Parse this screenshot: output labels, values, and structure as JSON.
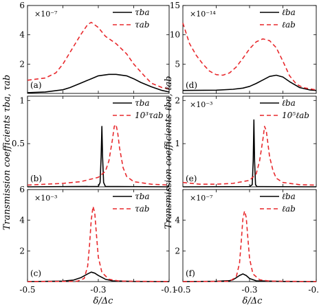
{
  "figure": {
    "ylabel_left": "Transmission coefficients τba, τab",
    "ylabel_right": "Transmission coefficients ℓba, ℓab",
    "xlabel": "δ/Δc",
    "xticks": [
      "-0.5",
      "-0.3",
      "-0.1"
    ]
  },
  "chart_data": [
    {
      "id": "a",
      "type": "line",
      "panel_label": "(a)",
      "scale_label": "×10⁻⁷",
      "ylim": [
        0,
        6
      ],
      "yticks": [
        "2",
        "4",
        "6"
      ],
      "xlim": [
        -0.5,
        -0.1
      ],
      "legend_position": "top-right",
      "series": [
        {
          "name": "τba",
          "style": "solid",
          "color": "#000000",
          "x": [
            -0.5,
            -0.45,
            -0.4,
            -0.38,
            -0.35,
            -0.32,
            -0.3,
            -0.27,
            -0.25,
            -0.22,
            -0.2,
            -0.18,
            -0.15,
            -0.12,
            -0.1
          ],
          "y": [
            0.05,
            0.1,
            0.25,
            0.4,
            0.7,
            1.0,
            1.2,
            1.3,
            1.3,
            1.2,
            1.0,
            0.75,
            0.45,
            0.2,
            0.1
          ]
        },
        {
          "name": "τab",
          "style": "dashed",
          "color": "#e8282c",
          "x": [
            -0.5,
            -0.45,
            -0.42,
            -0.4,
            -0.38,
            -0.35,
            -0.33,
            -0.32,
            -0.3,
            -0.28,
            -0.25,
            -0.22,
            -0.2,
            -0.17,
            -0.15,
            -0.12,
            -0.1
          ],
          "y": [
            0.9,
            1.05,
            1.4,
            2.0,
            2.8,
            4.0,
            4.7,
            4.85,
            4.5,
            3.9,
            3.4,
            2.7,
            2.0,
            1.2,
            0.7,
            0.4,
            0.3
          ]
        }
      ]
    },
    {
      "id": "b",
      "type": "line",
      "panel_label": "(b)",
      "scale_label": "",
      "ylim": [
        0,
        1.05
      ],
      "yticks": [
        "0.5",
        "1"
      ],
      "xlim": [
        -0.5,
        -0.1
      ],
      "legend_position": "top-right",
      "series": [
        {
          "name": "τba",
          "style": "solid",
          "color": "#000000",
          "x": [
            -0.5,
            -0.3,
            -0.295,
            -0.292,
            -0.29,
            -0.288,
            -0.285,
            -0.28,
            -0.1
          ],
          "y": [
            0,
            0.005,
            0.05,
            0.35,
            0.7,
            0.35,
            0.05,
            0.005,
            0
          ]
        },
        {
          "name": "10³τab",
          "style": "dashed",
          "color": "#e8282c",
          "x": [
            -0.5,
            -0.45,
            -0.4,
            -0.35,
            -0.3,
            -0.28,
            -0.27,
            -0.26,
            -0.255,
            -0.25,
            -0.245,
            -0.24,
            -0.23,
            -0.22,
            -0.2,
            -0.15,
            -0.1
          ],
          "y": [
            0.02,
            0.03,
            0.04,
            0.06,
            0.11,
            0.18,
            0.3,
            0.55,
            0.7,
            0.72,
            0.62,
            0.45,
            0.22,
            0.12,
            0.06,
            0.03,
            0.02
          ]
        }
      ]
    },
    {
      "id": "c",
      "type": "line",
      "panel_label": "(c)",
      "scale_label": "×10⁻³",
      "ylim": [
        0,
        6
      ],
      "yticks": [
        "2",
        "4",
        "6"
      ],
      "xlim": [
        -0.5,
        -0.1
      ],
      "legend_position": "top-right",
      "series": [
        {
          "name": "τba",
          "style": "solid",
          "color": "#000000",
          "x": [
            -0.5,
            -0.4,
            -0.37,
            -0.35,
            -0.33,
            -0.32,
            -0.31,
            -0.3,
            -0.28,
            -0.26,
            -0.2,
            -0.1
          ],
          "y": [
            0,
            0.03,
            0.1,
            0.25,
            0.5,
            0.62,
            0.55,
            0.4,
            0.15,
            0.05,
            0.01,
            0
          ]
        },
        {
          "name": "τab",
          "style": "dashed",
          "color": "#e8282c",
          "x": [
            -0.5,
            -0.36,
            -0.34,
            -0.33,
            -0.325,
            -0.32,
            -0.315,
            -0.31,
            -0.305,
            -0.3,
            -0.29,
            -0.27,
            -0.24,
            -0.1
          ],
          "y": [
            0,
            0.02,
            0.2,
            1.0,
            2.3,
            4.0,
            4.9,
            4.5,
            3.0,
            1.6,
            0.6,
            0.15,
            0.03,
            0
          ]
        }
      ]
    },
    {
      "id": "d",
      "type": "line",
      "panel_label": "(d)",
      "scale_label": "×10⁻¹⁴",
      "ylim": [
        0,
        15
      ],
      "yticks": [
        "5",
        "10",
        "15"
      ],
      "xlim": [
        -0.5,
        -0.1
      ],
      "legend_position": "top-right",
      "series": [
        {
          "name": "ℓba",
          "style": "solid",
          "color": "#000000",
          "x": [
            -0.5,
            -0.4,
            -0.35,
            -0.32,
            -0.3,
            -0.28,
            -0.26,
            -0.24,
            -0.22,
            -0.2,
            -0.18,
            -0.15,
            -0.12,
            -0.1
          ],
          "y": [
            0.5,
            0.55,
            0.7,
            0.9,
            1.2,
            1.7,
            2.3,
            2.9,
            3.1,
            2.8,
            2.0,
            1.0,
            0.6,
            0.5
          ]
        },
        {
          "name": "ℓab",
          "style": "dashed",
          "color": "#e8282c",
          "x": [
            -0.5,
            -0.48,
            -0.46,
            -0.44,
            -0.42,
            -0.4,
            -0.38,
            -0.36,
            -0.34,
            -0.32,
            -0.3,
            -0.28,
            -0.26,
            -0.24,
            -0.22,
            -0.2,
            -0.18,
            -0.16,
            -0.14,
            -0.12,
            -0.1
          ],
          "y": [
            12.0,
            8.5,
            6.5,
            5.0,
            3.8,
            3.2,
            3.1,
            3.5,
            4.5,
            6.0,
            7.6,
            8.8,
            9.3,
            9.0,
            7.8,
            5.5,
            3.0,
            1.6,
            1.0,
            0.8,
            0.6
          ]
        }
      ]
    },
    {
      "id": "e",
      "type": "line",
      "panel_label": "(e)",
      "scale_label": "×10⁻³",
      "ylim": [
        0,
        2.1
      ],
      "yticks": [
        "1",
        "2"
      ],
      "xlim": [
        -0.5,
        -0.1
      ],
      "legend_position": "top-right",
      "series": [
        {
          "name": "ℓba",
          "style": "solid",
          "color": "#000000",
          "x": [
            -0.5,
            -0.3,
            -0.292,
            -0.289,
            -0.287,
            -0.285,
            -0.282,
            -0.278,
            -0.1
          ],
          "y": [
            0,
            0.005,
            0.05,
            0.6,
            1.55,
            0.6,
            0.05,
            0.005,
            0
          ]
        },
        {
          "name": "10⁵ℓab",
          "style": "dashed",
          "color": "#e8282c",
          "x": [
            -0.5,
            -0.45,
            -0.4,
            -0.35,
            -0.3,
            -0.28,
            -0.27,
            -0.26,
            -0.255,
            -0.25,
            -0.245,
            -0.24,
            -0.23,
            -0.22,
            -0.2,
            -0.15,
            -0.1
          ],
          "y": [
            0.1,
            0.06,
            0.06,
            0.08,
            0.15,
            0.3,
            0.6,
            1.1,
            1.4,
            1.3,
            1.0,
            0.7,
            0.38,
            0.2,
            0.1,
            0.05,
            0.04
          ]
        }
      ]
    },
    {
      "id": "f",
      "type": "line",
      "panel_label": "(f)",
      "scale_label": "×10⁻⁷",
      "ylim": [
        0,
        6
      ],
      "yticks": [
        "2",
        "4"
      ],
      "xlim": [
        -0.5,
        -0.1
      ],
      "legend_position": "top-right",
      "series": [
        {
          "name": "ℓba",
          "style": "solid",
          "color": "#000000",
          "x": [
            -0.5,
            -0.4,
            -0.36,
            -0.35,
            -0.34,
            -0.33,
            -0.32,
            -0.31,
            -0.3,
            -0.28,
            -0.2,
            -0.1
          ],
          "y": [
            0,
            0.02,
            0.06,
            0.12,
            0.25,
            0.4,
            0.5,
            0.4,
            0.2,
            0.05,
            0.01,
            0
          ]
        },
        {
          "name": "ℓab",
          "style": "dashed",
          "color": "#e8282c",
          "x": [
            -0.5,
            -0.36,
            -0.34,
            -0.33,
            -0.325,
            -0.32,
            -0.315,
            -0.31,
            -0.305,
            -0.3,
            -0.29,
            -0.27,
            -0.24,
            -0.1
          ],
          "y": [
            0,
            0.02,
            0.3,
            1.2,
            2.6,
            4.1,
            4.6,
            4.2,
            2.8,
            1.5,
            0.5,
            0.12,
            0.03,
            0
          ]
        }
      ]
    }
  ]
}
